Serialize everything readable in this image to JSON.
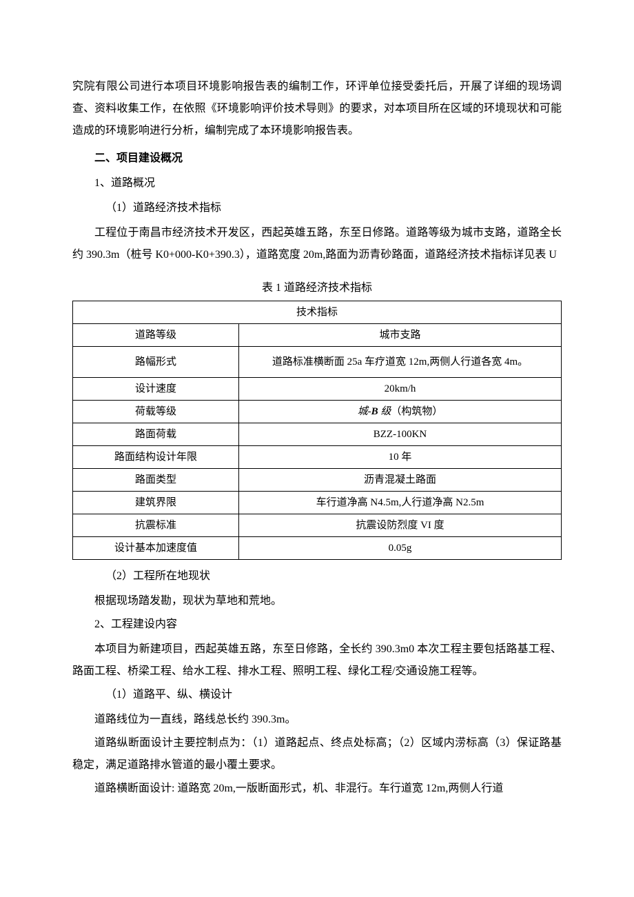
{
  "paras": {
    "p0": "究院有限公司进行本项目环境影响报告表的编制工作，环评单位接受委托后，开展了详细的现场调查、资料收集工作，在依照《环境影响评价技术导则》的要求，对本项目所在区域的环境现状和可能造成的环境影响进行分析，编制完成了本环境影响报告表。",
    "h2": "二、项目建设概况",
    "s1": "1、道路概况",
    "s1_1": "（1）道路经济技术指标",
    "p1": "工程位于南昌市经济技术开发区，西起英雄五路，东至日修路。道路等级为城市支路，道路全长约 390.3m（桩号 K0+000-K0+390.3），道路宽度 20m,路面为沥青砂路面，道路经济技术指标详见表 U",
    "caption": "表 1 道路经济技术指标",
    "s1_2": "（2）工程所在地现状",
    "p2": "根据现场踏发勘，现状为草地和荒地。",
    "s2": "2、工程建设内容",
    "p3": "本项目为新建项目，西起英雄五路，东至日修路，全长约 390.3m0 本次工程主要包括路基工程、路面工程、桥梁工程、给水工程、排水工程、照明工程、绿化工程/交通设施工程等。",
    "s2_1": "（1）道路平、纵、横设计",
    "p4": "道路线位为一直线，路线总长约 390.3m。",
    "p5": "道路纵断面设计主要控制点为：（1）道路起点、终点处标高；（2）区域内涝标高（3）保证路基稳定，满足道路排水管道的最小覆土要求。",
    "p6": "道路横断面设计: 道路宽 20m,一版断面形式，机、非混行。车行道宽 12m,两侧人行道"
  },
  "table": {
    "header": "技术指标",
    "rows": [
      {
        "label": "道路等级",
        "value": "城市支路"
      },
      {
        "label": "路幅形式",
        "value": "道路标准横断面 25a 车疗道宽 12m,两侧人行道各宽 4m。",
        "tall": true
      },
      {
        "label": "设计速度",
        "value": "20km/h"
      },
      {
        "label": "荷载等级",
        "value_html": true,
        "value": "城-B 级（构筑物）"
      },
      {
        "label": "路面荷载",
        "value": "BZZ-100KN"
      },
      {
        "label": "路面结构设计年限",
        "value": "10 年"
      },
      {
        "label": "路面类型",
        "value": "沥青混凝土路面"
      },
      {
        "label": "建筑界限",
        "value": "车行道净高 N4.5m,人行道净高 N2.5m"
      },
      {
        "label": "抗震标准",
        "value": "抗震设防烈度 VI 度"
      },
      {
        "label": "设计基本加速度值",
        "value": "0.05g"
      }
    ]
  }
}
